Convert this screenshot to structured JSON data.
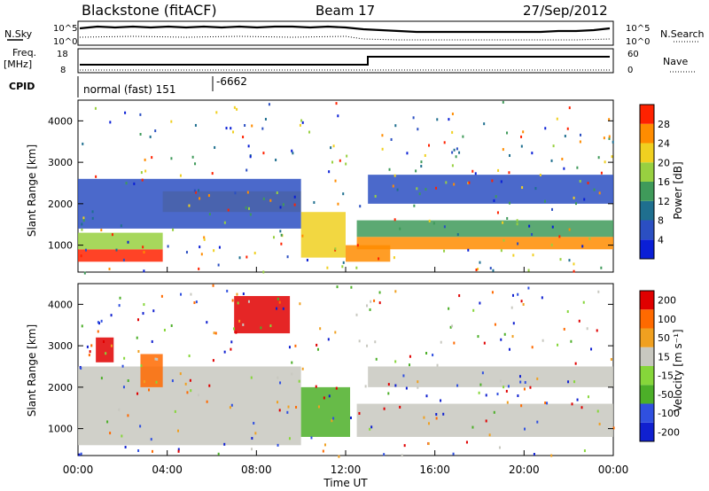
{
  "header": {
    "station": "Blackstone (fitACF)",
    "beam": "Beam 17",
    "date": "27/Sep/2012"
  },
  "side_labels": {
    "nsky": "N.Sky",
    "nsearch": "N.Search",
    "freq": "Freq.",
    "freq_unit": "[MHz]",
    "nave": "Nave",
    "cpid": "CPID"
  },
  "strip_ticks": {
    "noise_top": "10^5",
    "noise_bottom": "10^0",
    "freq_top": "18",
    "freq_bottom": "8",
    "nave_top": "60",
    "nave_bottom": "0"
  },
  "cpid": {
    "mode": "normal (fast) 151",
    "code": "-6662"
  },
  "colors": {
    "power": [
      "#0a1fd6",
      "#2b4fc2",
      "#1f6f8f",
      "#3f9a5a",
      "#98d040",
      "#f0d020",
      "#ff8c00",
      "#ff2200"
    ],
    "velocity": [
      "#1020d0",
      "#3050e0",
      "#4caf28",
      "#86d63a",
      "#c8c8c0",
      "#f0a020",
      "#ff6a00",
      "#e00000"
    ]
  },
  "chart_data": [
    {
      "type": "heatmap",
      "name": "power",
      "ylabel": "Slant Range [km]",
      "yticks": [
        "1000",
        "2000",
        "3000",
        "4000"
      ],
      "ylim": [
        350,
        4500
      ],
      "colorbar_label": "Power [dB]",
      "colorbar_ticks": [
        "4",
        "8",
        "12",
        "16",
        "20",
        "24",
        "28"
      ],
      "grid": false,
      "bands": [
        {
          "t0": 0.0,
          "t1": 3.8,
          "r0": 600,
          "r1": 900,
          "level": 7
        },
        {
          "t0": 0.0,
          "t1": 3.8,
          "r0": 900,
          "r1": 1300,
          "level": 4
        },
        {
          "t0": 3.8,
          "t1": 10.0,
          "r0": 1800,
          "r1": 2300,
          "level": 5
        },
        {
          "t0": 10.0,
          "t1": 12.0,
          "r0": 700,
          "r1": 1800,
          "level": 5
        },
        {
          "t0": 12.0,
          "t1": 14.0,
          "r0": 600,
          "r1": 1000,
          "level": 6
        },
        {
          "t0": 12.5,
          "t1": 24.0,
          "r0": 900,
          "r1": 1200,
          "level": 6
        },
        {
          "t0": 12.5,
          "t1": 24.0,
          "r0": 1200,
          "r1": 1600,
          "level": 3
        },
        {
          "t0": 0.0,
          "t1": 10.0,
          "r0": 1400,
          "r1": 2600,
          "level": 1
        },
        {
          "t0": 13.0,
          "t1": 24.0,
          "r0": 2000,
          "r1": 2700,
          "level": 1
        }
      ]
    },
    {
      "type": "heatmap",
      "name": "velocity",
      "ylabel": "Slant Range [km]",
      "yticks": [
        "1000",
        "2000",
        "3000",
        "4000"
      ],
      "ylim": [
        350,
        4500
      ],
      "colorbar_label": "Velocity [m s⁻¹]",
      "colorbar_ticks": [
        "200",
        "100",
        "50",
        "15",
        "-15",
        "-50",
        "-100",
        "-200"
      ],
      "xticks": [
        "00:00",
        "04:00",
        "08:00",
        "12:00",
        "16:00",
        "20:00",
        "00:00"
      ],
      "xlabel": "Time UT",
      "bands": [
        {
          "t0": 0.0,
          "t1": 10.0,
          "r0": 600,
          "r1": 2500,
          "level": 4
        },
        {
          "t0": 0.8,
          "t1": 1.6,
          "r0": 2600,
          "r1": 3200,
          "level": 7
        },
        {
          "t0": 2.8,
          "t1": 3.8,
          "r0": 2000,
          "r1": 2800,
          "level": 6
        },
        {
          "t0": 10.0,
          "t1": 12.2,
          "r0": 800,
          "r1": 2000,
          "level": 2
        },
        {
          "t0": 12.5,
          "t1": 24.0,
          "r0": 800,
          "r1": 1600,
          "level": 4
        },
        {
          "t0": 13.0,
          "t1": 24.0,
          "r0": 2000,
          "r1": 2500,
          "level": 4
        },
        {
          "t0": 7.0,
          "t1": 9.5,
          "r0": 3300,
          "r1": 4200,
          "level": 7
        }
      ]
    }
  ]
}
